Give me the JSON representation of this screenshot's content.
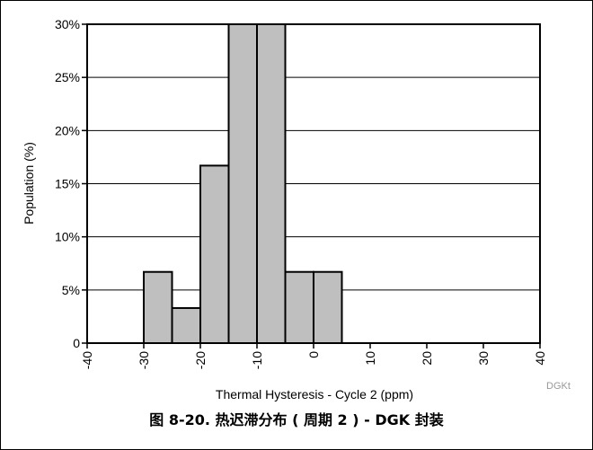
{
  "chart_data": {
    "type": "bar",
    "histogram": true,
    "xlabel": "Thermal Hysteresis - Cycle 2 (ppm)",
    "ylabel": "Population (%)",
    "xlim": [
      -40,
      40
    ],
    "ylim": [
      0,
      30
    ],
    "x_ticks": [
      "-40",
      "-30",
      "-20",
      "-10",
      "0",
      "10",
      "20",
      "30",
      "40"
    ],
    "y_ticks": [
      "0",
      "5%",
      "10%",
      "15%",
      "20%",
      "25%",
      "30%"
    ],
    "grid": "horizontal",
    "bins": [
      {
        "from": -30,
        "to": -25,
        "value": 6.7
      },
      {
        "from": -25,
        "to": -20,
        "value": 3.3
      },
      {
        "from": -20,
        "to": -15,
        "value": 16.7
      },
      {
        "from": -15,
        "to": -10,
        "value": 30
      },
      {
        "from": -10,
        "to": -5,
        "value": 30
      },
      {
        "from": -5,
        "to": 0,
        "value": 6.7
      },
      {
        "from": 0,
        "to": 5,
        "value": 6.7
      }
    ]
  },
  "watermark": "DGKt",
  "caption": "图 8-20. 热迟滞分布 ( 周期 2 ) - DGK 封装",
  "colors": {
    "bar_fill": "#bfbfbf",
    "bar_stroke": "#000000",
    "grid": "#000000"
  }
}
